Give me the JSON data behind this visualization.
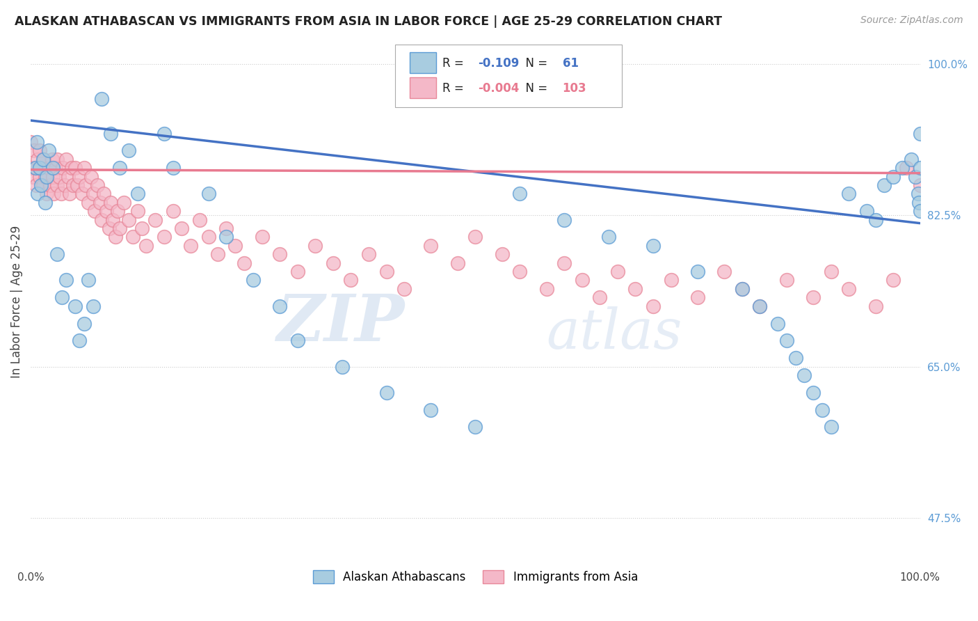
{
  "title": "ALASKAN ATHABASCAN VS IMMIGRANTS FROM ASIA IN LABOR FORCE | AGE 25-29 CORRELATION CHART",
  "source": "Source: ZipAtlas.com",
  "ylabel": "In Labor Force | Age 25-29",
  "xlim": [
    0.0,
    1.0
  ],
  "ylim": [
    0.42,
    1.03
  ],
  "yticks": [
    0.475,
    0.65,
    0.825,
    1.0
  ],
  "ytick_labels": [
    "47.5%",
    "65.0%",
    "82.5%",
    "100.0%"
  ],
  "blue_R": -0.109,
  "blue_N": 61,
  "pink_R": -0.004,
  "pink_N": 103,
  "blue_color": "#a8cce0",
  "pink_color": "#f4b8c8",
  "blue_edge_color": "#5b9bd5",
  "pink_edge_color": "#e8889a",
  "blue_line_color": "#4472c4",
  "pink_line_color": "#e87a90",
  "legend_label_blue": "Alaskan Athabascans",
  "legend_label_pink": "Immigrants from Asia",
  "background_color": "#ffffff",
  "grid_color": "#cccccc",
  "watermark_zip": "ZIP",
  "watermark_atlas": "atlas",
  "blue_x": [
    0.005,
    0.007,
    0.008,
    0.01,
    0.012,
    0.014,
    0.016,
    0.018,
    0.02,
    0.025,
    0.03,
    0.035,
    0.04,
    0.05,
    0.055,
    0.06,
    0.065,
    0.07,
    0.08,
    0.09,
    0.1,
    0.11,
    0.12,
    0.15,
    0.16,
    0.2,
    0.22,
    0.25,
    0.28,
    0.3,
    0.35,
    0.4,
    0.45,
    0.5,
    0.55,
    0.6,
    0.65,
    0.7,
    0.75,
    0.8,
    0.82,
    0.84,
    0.85,
    0.86,
    0.87,
    0.88,
    0.89,
    0.9,
    0.92,
    0.94,
    0.95,
    0.96,
    0.97,
    0.98,
    0.99,
    0.995,
    0.998,
    0.999,
    1.0,
    1.0,
    1.0
  ],
  "blue_y": [
    0.88,
    0.91,
    0.85,
    0.88,
    0.86,
    0.89,
    0.84,
    0.87,
    0.9,
    0.88,
    0.78,
    0.73,
    0.75,
    0.72,
    0.68,
    0.7,
    0.75,
    0.72,
    0.96,
    0.92,
    0.88,
    0.9,
    0.85,
    0.92,
    0.88,
    0.85,
    0.8,
    0.75,
    0.72,
    0.68,
    0.65,
    0.62,
    0.6,
    0.58,
    0.85,
    0.82,
    0.8,
    0.79,
    0.76,
    0.74,
    0.72,
    0.7,
    0.68,
    0.66,
    0.64,
    0.62,
    0.6,
    0.58,
    0.85,
    0.83,
    0.82,
    0.86,
    0.87,
    0.88,
    0.89,
    0.87,
    0.85,
    0.84,
    0.83,
    0.92,
    0.88
  ],
  "pink_x": [
    0.0,
    0.0,
    0.002,
    0.004,
    0.005,
    0.006,
    0.008,
    0.01,
    0.01,
    0.012,
    0.014,
    0.015,
    0.016,
    0.018,
    0.02,
    0.022,
    0.024,
    0.025,
    0.026,
    0.028,
    0.03,
    0.03,
    0.032,
    0.034,
    0.036,
    0.038,
    0.04,
    0.042,
    0.044,
    0.046,
    0.048,
    0.05,
    0.052,
    0.055,
    0.058,
    0.06,
    0.062,
    0.065,
    0.068,
    0.07,
    0.072,
    0.075,
    0.078,
    0.08,
    0.082,
    0.085,
    0.088,
    0.09,
    0.092,
    0.095,
    0.098,
    0.1,
    0.105,
    0.11,
    0.115,
    0.12,
    0.125,
    0.13,
    0.14,
    0.15,
    0.16,
    0.17,
    0.18,
    0.19,
    0.2,
    0.21,
    0.22,
    0.23,
    0.24,
    0.26,
    0.28,
    0.3,
    0.32,
    0.34,
    0.36,
    0.38,
    0.4,
    0.42,
    0.45,
    0.48,
    0.5,
    0.53,
    0.55,
    0.58,
    0.6,
    0.62,
    0.64,
    0.66,
    0.68,
    0.7,
    0.72,
    0.75,
    0.78,
    0.8,
    0.82,
    0.85,
    0.88,
    0.9,
    0.92,
    0.95,
    0.97,
    0.985,
    1.0
  ],
  "pink_y": [
    0.88,
    0.91,
    0.87,
    0.9,
    0.88,
    0.86,
    0.89,
    0.87,
    0.9,
    0.88,
    0.86,
    0.89,
    0.87,
    0.85,
    0.88,
    0.86,
    0.89,
    0.87,
    0.85,
    0.88,
    0.86,
    0.89,
    0.87,
    0.85,
    0.88,
    0.86,
    0.89,
    0.87,
    0.85,
    0.88,
    0.86,
    0.88,
    0.86,
    0.87,
    0.85,
    0.88,
    0.86,
    0.84,
    0.87,
    0.85,
    0.83,
    0.86,
    0.84,
    0.82,
    0.85,
    0.83,
    0.81,
    0.84,
    0.82,
    0.8,
    0.83,
    0.81,
    0.84,
    0.82,
    0.8,
    0.83,
    0.81,
    0.79,
    0.82,
    0.8,
    0.83,
    0.81,
    0.79,
    0.82,
    0.8,
    0.78,
    0.81,
    0.79,
    0.77,
    0.8,
    0.78,
    0.76,
    0.79,
    0.77,
    0.75,
    0.78,
    0.76,
    0.74,
    0.79,
    0.77,
    0.8,
    0.78,
    0.76,
    0.74,
    0.77,
    0.75,
    0.73,
    0.76,
    0.74,
    0.72,
    0.75,
    0.73,
    0.76,
    0.74,
    0.72,
    0.75,
    0.73,
    0.76,
    0.74,
    0.72,
    0.75,
    0.88,
    0.86
  ],
  "blue_trend_x0": 0.0,
  "blue_trend_y0": 0.935,
  "blue_trend_x1": 1.0,
  "blue_trend_y1": 0.816,
  "pink_trend_x0": 0.0,
  "pink_trend_y0": 0.878,
  "pink_trend_x1": 1.0,
  "pink_trend_y1": 0.874
}
